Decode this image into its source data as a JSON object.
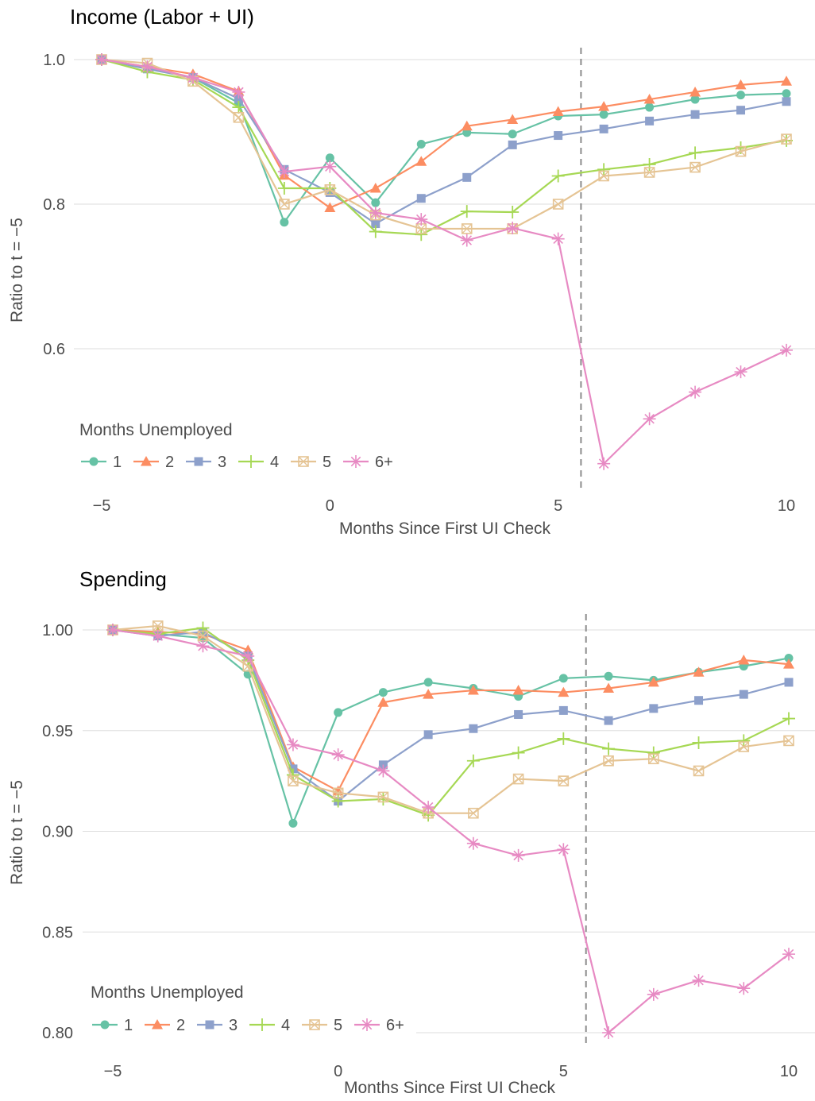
{
  "chart_data": [
    {
      "type": "line",
      "title": "Income (Labor + UI)",
      "xlabel": "Months Since First UI Check",
      "ylabel": "Ratio to t = −5",
      "xlim": [
        -5.5,
        10.5
      ],
      "ylim": [
        0.44,
        1.03
      ],
      "x_ticks": [
        -5,
        0,
        5,
        10
      ],
      "x_tick_labels": [
        "−5",
        "0",
        "5",
        "10"
      ],
      "y_ticks": [
        0.6,
        0.8,
        1.0
      ],
      "y_tick_labels": [
        "0.6",
        "0.8",
        "1.0"
      ],
      "grid": true,
      "vline_x": 5.5,
      "legend": {
        "title": "Months Unemployed",
        "placement": "bottom-left"
      },
      "x": [
        -5,
        -4,
        -3,
        -2,
        -1,
        0,
        1,
        2,
        3,
        4,
        5,
        6,
        7,
        8,
        9,
        10
      ],
      "series": [
        {
          "name": "1",
          "color": "#66c2a5",
          "marker": "circle",
          "values": [
            1.0,
            0.988,
            0.975,
            0.94,
            0.775,
            0.864,
            0.802,
            0.883,
            0.899,
            0.897,
            0.922,
            0.924,
            0.934,
            0.945,
            0.951,
            0.953
          ]
        },
        {
          "name": "2",
          "color": "#fc8d62",
          "marker": "triangle",
          "values": [
            1.0,
            0.99,
            0.98,
            0.956,
            0.84,
            0.795,
            0.822,
            0.859,
            0.908,
            0.917,
            0.928,
            0.935,
            0.945,
            0.955,
            0.965,
            0.97
          ]
        },
        {
          "name": "3",
          "color": "#8da0cb",
          "marker": "square",
          "values": [
            1.0,
            0.987,
            0.975,
            0.946,
            0.848,
            0.816,
            0.773,
            0.808,
            0.837,
            0.882,
            0.895,
            0.904,
            0.915,
            0.924,
            0.93,
            0.942
          ]
        },
        {
          "name": "4",
          "color": "#a6d854",
          "marker": "plus",
          "values": [
            1.0,
            0.983,
            0.972,
            0.934,
            0.822,
            0.822,
            0.762,
            0.758,
            0.79,
            0.789,
            0.839,
            0.848,
            0.855,
            0.871,
            0.878,
            0.888
          ]
        },
        {
          "name": "5",
          "color": "#e5c494",
          "marker": "boxx",
          "values": [
            1.0,
            0.995,
            0.97,
            0.92,
            0.8,
            0.82,
            0.785,
            0.766,
            0.766,
            0.766,
            0.8,
            0.839,
            0.844,
            0.851,
            0.873,
            0.89
          ]
        },
        {
          "name": "6+",
          "color": "#e78ac3",
          "marker": "asterisk",
          "values": [
            1.0,
            0.99,
            0.975,
            0.955,
            0.845,
            0.852,
            0.788,
            0.779,
            0.75,
            0.767,
            0.752,
            0.441,
            0.503,
            0.54,
            0.568,
            0.598
          ]
        }
      ]
    },
    {
      "type": "line",
      "title": "Spending",
      "xlabel": "Months Since First UI Check",
      "ylabel": "Ratio to t = −5",
      "xlim": [
        -5.5,
        10.5
      ],
      "ylim": [
        0.799,
        1.006
      ],
      "x_ticks": [
        -5,
        0,
        5,
        10
      ],
      "x_tick_labels": [
        "−5",
        "0",
        "5",
        "10"
      ],
      "y_ticks": [
        0.8,
        0.85,
        0.9,
        0.95,
        1.0
      ],
      "y_tick_labels": [
        "0.80",
        "0.85",
        "0.90",
        "0.95",
        "1.00"
      ],
      "grid": true,
      "vline_x": 5.5,
      "legend": {
        "title": "Months Unemployed",
        "placement": "bottom-left"
      },
      "x": [
        -5,
        -4,
        -3,
        -2,
        -1,
        0,
        1,
        2,
        3,
        4,
        5,
        6,
        7,
        8,
        9,
        10
      ],
      "series": [
        {
          "name": "1",
          "color": "#66c2a5",
          "marker": "circle",
          "values": [
            1.0,
            0.998,
            0.996,
            0.978,
            0.904,
            0.959,
            0.969,
            0.974,
            0.971,
            0.967,
            0.976,
            0.977,
            0.975,
            0.979,
            0.982,
            0.986
          ]
        },
        {
          "name": "2",
          "color": "#fc8d62",
          "marker": "triangle",
          "values": [
            1.0,
            0.999,
            0.998,
            0.99,
            0.932,
            0.92,
            0.964,
            0.968,
            0.97,
            0.97,
            0.969,
            0.971,
            0.974,
            0.979,
            0.985,
            0.983
          ]
        },
        {
          "name": "3",
          "color": "#8da0cb",
          "marker": "square",
          "values": [
            1.0,
            0.997,
            0.999,
            0.987,
            0.931,
            0.915,
            0.933,
            0.948,
            0.951,
            0.958,
            0.96,
            0.955,
            0.961,
            0.965,
            0.968,
            0.974
          ]
        },
        {
          "name": "4",
          "color": "#a6d854",
          "marker": "plus",
          "values": [
            1.0,
            0.998,
            1.001,
            0.985,
            0.928,
            0.915,
            0.916,
            0.908,
            0.935,
            0.939,
            0.946,
            0.941,
            0.939,
            0.944,
            0.945,
            0.956
          ]
        },
        {
          "name": "5",
          "color": "#e5c494",
          "marker": "boxx",
          "values": [
            1.0,
            1.002,
            0.997,
            0.982,
            0.925,
            0.919,
            0.917,
            0.909,
            0.909,
            0.926,
            0.925,
            0.935,
            0.936,
            0.93,
            0.942,
            0.945
          ]
        },
        {
          "name": "6+",
          "color": "#e78ac3",
          "marker": "asterisk",
          "values": [
            1.0,
            0.997,
            0.992,
            0.987,
            0.943,
            0.938,
            0.93,
            0.912,
            0.894,
            0.888,
            0.891,
            0.8,
            0.819,
            0.826,
            0.822,
            0.839
          ]
        }
      ]
    }
  ]
}
